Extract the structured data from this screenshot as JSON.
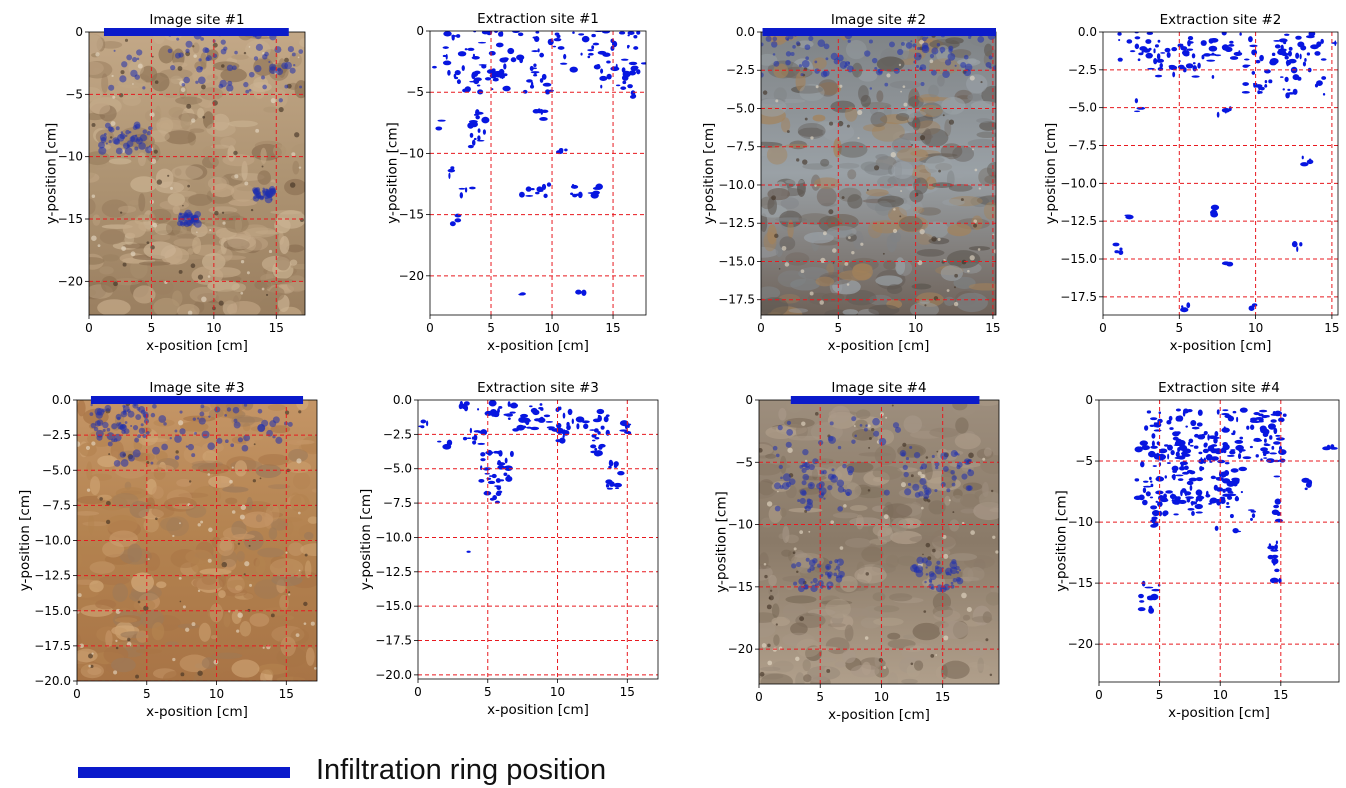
{
  "colors": {
    "ring": "#0a1acb",
    "dye": "#0716e0",
    "grid": "#e8191f",
    "axis": "#000000",
    "soil_light": "#b49a79",
    "soil_mid": "#8e7254",
    "soil_dark": "#5a4633",
    "soil_orange": "#b8834f",
    "soil_grey": "#8d9397"
  },
  "legend": {
    "ring_label": "Infiltration ring position",
    "icon": "blue-bar"
  },
  "chart_data": [
    {
      "type": "image",
      "title": "Image site #1",
      "xlabel": "x-position [cm]",
      "ylabel": "y-position [cm]",
      "xlim": [
        0,
        17.3
      ],
      "ylim": [
        -22.7,
        0
      ],
      "xticks": [
        0,
        5,
        10,
        15
      ],
      "yticks": [
        0,
        -5,
        -10,
        -15,
        -20
      ],
      "xticklabels": [
        "0",
        "5",
        "10",
        "15"
      ],
      "yticklabels": [
        "0",
        "−5",
        "−10",
        "−15",
        "−20"
      ],
      "grid": true,
      "ring": [
        1.2,
        16.0
      ],
      "content": "photo",
      "palette": "brown",
      "dye": [
        [
          6,
          1.5,
          10
        ],
        [
          12,
          2,
          9
        ],
        [
          16,
          1.5,
          14
        ],
        [
          3,
          8.5,
          4
        ],
        [
          8,
          15,
          1.5
        ],
        [
          14,
          13,
          1.5
        ]
      ]
    },
    {
      "type": "image",
      "title": "Extraction site #1",
      "xlabel": "x-position [cm]",
      "ylabel": "y-position [cm]",
      "xlim": [
        0,
        17.7
      ],
      "ylim": [
        -23.2,
        0
      ],
      "xticks": [
        0,
        5,
        10,
        15
      ],
      "yticks": [
        0,
        -5,
        -10,
        -15,
        -20
      ],
      "xticklabels": [
        "0",
        "5",
        "10",
        "15"
      ],
      "yticklabels": [
        "0",
        "−5",
        "−10",
        "−15",
        "−20"
      ],
      "grid": true,
      "ring": null,
      "content": "extraction",
      "blobs": [
        [
          0.3,
          0,
          17.7,
          3.5,
          95
        ],
        [
          2,
          3,
          6,
          5,
          22
        ],
        [
          6,
          3,
          10,
          5,
          14
        ],
        [
          14,
          2.5,
          17,
          5.5,
          16
        ],
        [
          3.2,
          6.5,
          4.6,
          9.5,
          16
        ],
        [
          8.5,
          6.5,
          9.5,
          7.5,
          5
        ],
        [
          7,
          12.5,
          10,
          13.5,
          10
        ],
        [
          11.5,
          12.5,
          12.5,
          13.5,
          6
        ],
        [
          13.2,
          12.5,
          14,
          13.5,
          5
        ],
        [
          2.5,
          12.8,
          3.5,
          13.5,
          4
        ],
        [
          10.5,
          9.3,
          11.5,
          10,
          4
        ],
        [
          1.5,
          15,
          2.5,
          16,
          3
        ],
        [
          7.5,
          21.3,
          8.5,
          22,
          2
        ],
        [
          12,
          21,
          13,
          21.5,
          2
        ],
        [
          1.2,
          11,
          2.2,
          12,
          3
        ],
        [
          0.5,
          7,
          1.5,
          8,
          2
        ]
      ]
    },
    {
      "type": "image",
      "title": "Image site #2",
      "xlabel": "x-position [cm]",
      "ylabel": "y-position [cm]",
      "xlim": [
        0,
        15.2
      ],
      "ylim": [
        -18.5,
        0
      ],
      "xticks": [
        0,
        5,
        10,
        15
      ],
      "yticks": [
        0,
        -2.5,
        -5,
        -7.5,
        -10,
        -12.5,
        -15,
        -17.5
      ],
      "xticklabels": [
        "0",
        "5",
        "10",
        "15"
      ],
      "yticklabels": [
        "0.0",
        "−2.5",
        "−5.0",
        "−7.5",
        "−10.0",
        "−12.5",
        "−15.0",
        "−17.5"
      ],
      "grid": true,
      "ring": [
        0.1,
        15.2
      ],
      "content": "photo",
      "palette": "grey",
      "dye": [
        [
          3,
          1,
          6
        ],
        [
          9,
          1.3,
          8
        ],
        [
          13,
          1,
          6
        ]
      ]
    },
    {
      "type": "image",
      "title": "Extraction site #2",
      "xlabel": "x-position [cm]",
      "ylabel": "y-position [cm]",
      "xlim": [
        0,
        15.4
      ],
      "ylim": [
        -18.7,
        0
      ],
      "xticks": [
        0,
        5,
        10,
        15
      ],
      "yticks": [
        0,
        -2.5,
        -5,
        -7.5,
        -10,
        -12.5,
        -15,
        -17.5
      ],
      "xticklabels": [
        "0",
        "5",
        "10",
        "15"
      ],
      "yticklabels": [
        "0.0",
        "−2.5",
        "−5.0",
        "−7.5",
        "−10.0",
        "−12.5",
        "−15.0",
        "−17.5"
      ],
      "grid": true,
      "ring": null,
      "content": "extraction",
      "blobs": [
        [
          1,
          0,
          15.2,
          2,
          90
        ],
        [
          3,
          1.8,
          8,
          3,
          18
        ],
        [
          9,
          1.8,
          14,
          4,
          24
        ],
        [
          12,
          2.5,
          14.5,
          4.2,
          10
        ],
        [
          10,
          3,
          11,
          4,
          6
        ],
        [
          2,
          4.5,
          2.5,
          5.5,
          3
        ],
        [
          7.5,
          4.8,
          8.5,
          6,
          4
        ],
        [
          13,
          8.2,
          13.6,
          8.8,
          4
        ],
        [
          6.8,
          11.5,
          7.4,
          12.2,
          3
        ],
        [
          1.5,
          11.8,
          2.2,
          12.3,
          2
        ],
        [
          12.5,
          14,
          13,
          14.8,
          3
        ],
        [
          0.4,
          14,
          1.5,
          15.2,
          4
        ],
        [
          5,
          17.6,
          5.8,
          18.5,
          4
        ],
        [
          8,
          15.2,
          8.6,
          15.6,
          2
        ],
        [
          9.5,
          18,
          10,
          18.5,
          2
        ],
        [
          15,
          0.5,
          15.3,
          1.2,
          2
        ]
      ]
    },
    {
      "type": "image",
      "title": "Image site #3",
      "xlabel": "x-position [cm]",
      "ylabel": "y-position [cm]",
      "xlim": [
        0,
        17.2
      ],
      "ylim": [
        -20,
        0
      ],
      "xticks": [
        0,
        5,
        10,
        15
      ],
      "yticks": [
        0,
        -2.5,
        -5,
        -7.5,
        -10,
        -12.5,
        -15,
        -17.5,
        -20
      ],
      "xticklabels": [
        "0",
        "5",
        "10",
        "15"
      ],
      "yticklabels": [
        "0.0",
        "−2.5",
        "−5.0",
        "−7.5",
        "−10.0",
        "−12.5",
        "−15.0",
        "−17.5",
        "−20.0"
      ],
      "grid": true,
      "ring": [
        1.0,
        16.2
      ],
      "content": "photo",
      "palette": "orange",
      "dye": [
        [
          5,
          2.5,
          7
        ],
        [
          12,
          1.5,
          7
        ],
        [
          3,
          1.5,
          4
        ]
      ]
    },
    {
      "type": "image",
      "title": "Extraction site #3",
      "xlabel": "x-position [cm]",
      "ylabel": "y-position [cm]",
      "xlim": [
        0,
        17.2
      ],
      "ylim": [
        -20.3,
        0
      ],
      "xticks": [
        0,
        5,
        10,
        15
      ],
      "yticks": [
        0,
        -2.5,
        -5,
        -7.5,
        -10,
        -12.5,
        -15,
        -17.5,
        -20
      ],
      "xticklabels": [
        "0",
        "5",
        "10",
        "15"
      ],
      "yticklabels": [
        "0.0",
        "−2.5",
        "−5.0",
        "−7.5",
        "−10.0",
        "−12.5",
        "−15.0",
        "−17.5",
        "−20.0"
      ],
      "grid": true,
      "ring": null,
      "content": "extraction",
      "blobs": [
        [
          3,
          0,
          7,
          1.2,
          20
        ],
        [
          6.5,
          0.2,
          10.5,
          2.2,
          30
        ],
        [
          10,
          0.8,
          15.2,
          2.5,
          30
        ],
        [
          3,
          2,
          4.8,
          3.3,
          10
        ],
        [
          4.5,
          3.8,
          6.8,
          6,
          26
        ],
        [
          4.8,
          5.5,
          6,
          7.5,
          12
        ],
        [
          9.5,
          2,
          10.5,
          3,
          6
        ],
        [
          12.5,
          2.5,
          13.5,
          4,
          10
        ],
        [
          13.5,
          4.5,
          14.8,
          6.5,
          12
        ],
        [
          0,
          1.2,
          1,
          2,
          4
        ],
        [
          1.5,
          3,
          2.5,
          4,
          3
        ],
        [
          3.5,
          10.8,
          3.7,
          11.1,
          1
        ]
      ]
    },
    {
      "type": "image",
      "title": "Image site #4",
      "xlabel": "x-position [cm]",
      "ylabel": "y-position [cm]",
      "xlim": [
        0,
        19.6
      ],
      "ylim": [
        -22.8,
        0
      ],
      "xticks": [
        0,
        5,
        10,
        15
      ],
      "yticks": [
        0,
        -5,
        -10,
        -15,
        -20
      ],
      "xticklabels": [
        "0",
        "5",
        "10",
        "15"
      ],
      "yticklabels": [
        "0",
        "−5",
        "−10",
        "−15",
        "−20"
      ],
      "grid": true,
      "ring": [
        2.6,
        18.0
      ],
      "content": "photo",
      "palette": "greybrown",
      "dye": [
        [
          7,
          5,
          12
        ],
        [
          4.5,
          7,
          6
        ],
        [
          14.5,
          6,
          6
        ],
        [
          4.8,
          14,
          4
        ],
        [
          14.5,
          14,
          4
        ]
      ]
    },
    {
      "type": "image",
      "title": "Extraction site #4",
      "xlabel": "x-position [cm]",
      "ylabel": "y-position [cm]",
      "xlim": [
        0,
        19.8
      ],
      "ylim": [
        -23.1,
        0
      ],
      "xticks": [
        0,
        5,
        10,
        15
      ],
      "yticks": [
        0,
        -5,
        -10,
        -15,
        -20
      ],
      "xticklabels": [
        "0",
        "5",
        "10",
        "15"
      ],
      "yticklabels": [
        "0",
        "−5",
        "−10",
        "−15",
        "−20"
      ],
      "grid": true,
      "ring": null,
      "content": "extraction",
      "blobs": [
        [
          3.5,
          0.8,
          14.8,
          4.8,
          110
        ],
        [
          3,
          3.5,
          12,
          8.5,
          110
        ],
        [
          4.5,
          7.5,
          9.5,
          9.5,
          30
        ],
        [
          9.5,
          5,
          11.5,
          10.8,
          20
        ],
        [
          13,
          0.5,
          15.5,
          5,
          24
        ],
        [
          14.5,
          6,
          15,
          10,
          6
        ],
        [
          14,
          11.5,
          15,
          15.8,
          12
        ],
        [
          3.4,
          15,
          5,
          17.3,
          12
        ],
        [
          18,
          3,
          19.5,
          4,
          4
        ],
        [
          16.5,
          6.5,
          17.5,
          7.5,
          4
        ],
        [
          12.5,
          9,
          13,
          10.5,
          4
        ],
        [
          4,
          9.5,
          5,
          10.5,
          4
        ]
      ]
    }
  ]
}
